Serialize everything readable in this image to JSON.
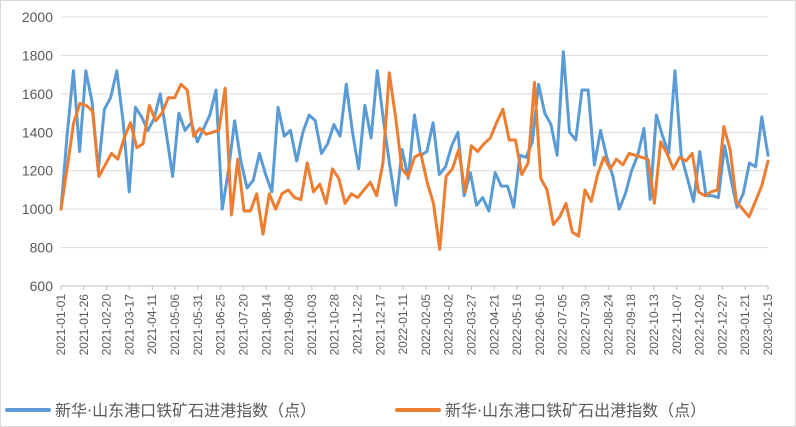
{
  "chart_data": {
    "type": "line",
    "title": "",
    "xlabel": "",
    "ylabel": "",
    "ylim": [
      600,
      2000
    ],
    "yticks": [
      600,
      800,
      1000,
      1200,
      1400,
      1600,
      1800,
      2000
    ],
    "grid": true,
    "legend_position": "bottom",
    "xtick_labels": [
      "2021-01-01",
      "2021-01-26",
      "2021-02-20",
      "2021-03-17",
      "2021-04-11",
      "2021-05-06",
      "2021-05-31",
      "2021-06-25",
      "2021-07-20",
      "2021-08-14",
      "2021-09-08",
      "2021-10-03",
      "2021-10-28",
      "2021-11-22",
      "2021-12-17",
      "2022-01-11",
      "2022-02-05",
      "2022-03-02",
      "2022-03-27",
      "2022-04-21",
      "2022-05-16",
      "2022-06-10",
      "2022-07-05",
      "2022-07-30",
      "2022-08-24",
      "2022-09-18",
      "2022-10-13",
      "2022-11-07",
      "2022-12-02",
      "2022-12-27",
      "2023-01-21",
      "2023-02-15"
    ],
    "series": [
      {
        "name": "新华·山东港口铁矿石进港指数（点）",
        "color": "#5b9bd5",
        "values": [
          1000,
          1390,
          1720,
          1300,
          1720,
          1560,
          1200,
          1520,
          1580,
          1720,
          1460,
          1090,
          1530,
          1480,
          1410,
          1470,
          1600,
          1390,
          1170,
          1500,
          1410,
          1450,
          1350,
          1420,
          1490,
          1620,
          1000,
          1200,
          1460,
          1250,
          1110,
          1150,
          1290,
          1180,
          1090,
          1530,
          1380,
          1410,
          1250,
          1400,
          1490,
          1460,
          1290,
          1340,
          1440,
          1380,
          1650,
          1400,
          1210,
          1540,
          1370,
          1720,
          1460,
          1230,
          1020,
          1310,
          1160,
          1490,
          1280,
          1300,
          1450,
          1180,
          1220,
          1330,
          1400,
          1070,
          1190,
          1020,
          1060,
          990,
          1190,
          1120,
          1120,
          1010,
          1280,
          1270,
          1350,
          1650,
          1500,
          1440,
          1280,
          1820,
          1400,
          1360,
          1620,
          1620,
          1230,
          1410,
          1270,
          1170,
          1000,
          1080,
          1200,
          1280,
          1420,
          1050,
          1490,
          1380,
          1290,
          1720,
          1280,
          1160,
          1040,
          1300,
          1070,
          1070,
          1060,
          1330,
          1160,
          1010,
          1080,
          1240,
          1220,
          1480,
          1280
        ]
      },
      {
        "name": "新华·山东港口铁矿石出港指数（点）",
        "color": "#ed7d31",
        "values": [
          1000,
          1220,
          1450,
          1550,
          1540,
          1510,
          1170,
          1230,
          1290,
          1260,
          1370,
          1450,
          1320,
          1340,
          1540,
          1460,
          1500,
          1580,
          1580,
          1650,
          1620,
          1380,
          1420,
          1390,
          1400,
          1410,
          1630,
          970,
          1260,
          990,
          990,
          1080,
          870,
          1080,
          1000,
          1080,
          1100,
          1060,
          1050,
          1240,
          1090,
          1130,
          1030,
          1210,
          1160,
          1030,
          1080,
          1060,
          1100,
          1140,
          1070,
          1240,
          1710,
          1480,
          1210,
          1170,
          1270,
          1290,
          1140,
          1030,
          790,
          1170,
          1210,
          1310,
          1090,
          1330,
          1300,
          1340,
          1370,
          1450,
          1520,
          1360,
          1360,
          1180,
          1240,
          1660,
          1160,
          1100,
          920,
          960,
          1030,
          880,
          860,
          1100,
          1040,
          1180,
          1270,
          1210,
          1260,
          1230,
          1290,
          1280,
          1270,
          1260,
          1030,
          1350,
          1290,
          1210,
          1270,
          1250,
          1290,
          1090,
          1070,
          1090,
          1100,
          1430,
          1310,
          1040,
          1000,
          960,
          1040,
          1120,
          1250
        ]
      }
    ]
  },
  "legend": [
    {
      "label": "新华·山东港口铁矿石进港指数（点）",
      "color": "#5b9bd5"
    },
    {
      "label": "新华·山东港口铁矿石出港指数（点）",
      "color": "#ed7d31"
    }
  ]
}
